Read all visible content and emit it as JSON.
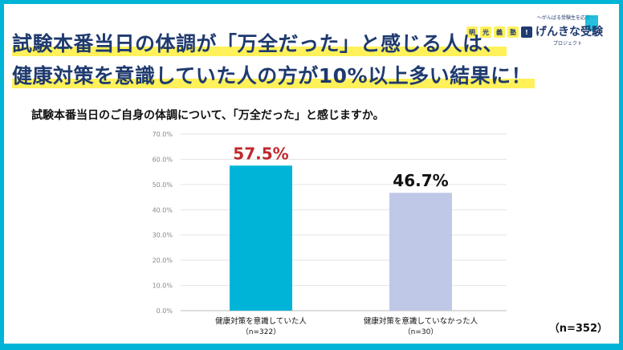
{
  "headline": {
    "line1": "試験本番当日の体調が「万全だった」と感じる人は、",
    "line2": "健康対策を意識していた人の方が10%以上多い結果に！"
  },
  "question": "試験本番当日のご自身の体調について、「万全だった」と感じますか。",
  "logo": {
    "pills": [
      "明",
      "光",
      "義",
      "塾",
      "!"
    ],
    "tagline_small": "〜がんばる受験生を応援〜",
    "name": "げんきな受験",
    "sub": "プロジェクト"
  },
  "total_n": "（n=352）",
  "colors": {
    "bar1": "#00b4d8",
    "bar2": "#bfc8e6",
    "label1": "#c0282d",
    "label2": "#111111",
    "headline": "#1f3a6e",
    "highlight": "#fff15a"
  },
  "chart_data": {
    "type": "bar",
    "categories": [
      "健康対策を意識していた人",
      "健康対策を意識していなかった人"
    ],
    "category_n": [
      "（n=322）",
      "（n=30）"
    ],
    "values": [
      57.5,
      46.7
    ],
    "data_labels": [
      "57.5%",
      "46.7%"
    ],
    "yticks": [
      "0.0%",
      "10.0%",
      "20.0%",
      "30.0%",
      "40.0%",
      "50.0%",
      "60.0%",
      "70.0%"
    ],
    "ylim": [
      0,
      70
    ],
    "grid": true
  }
}
